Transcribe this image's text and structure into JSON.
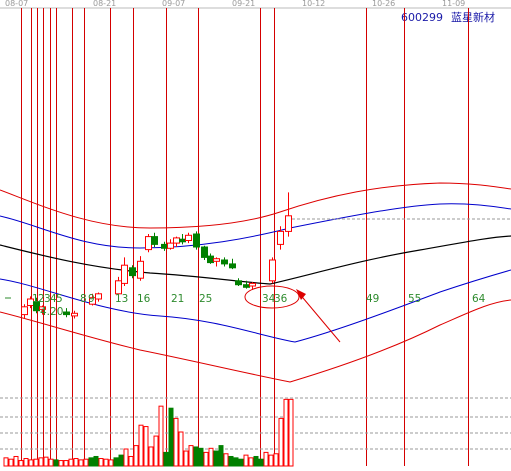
{
  "chart_data": {
    "type": "candlestick",
    "stock": {
      "code": "600299",
      "name": "蓝星新材"
    },
    "date_ticks": [
      "08-07",
      "08-21",
      "09-07",
      "09-21",
      "10-12",
      "10-26",
      "11-09"
    ],
    "price_label": "4.20",
    "time_zone_numbers": [
      {
        "label": "1"
      },
      {
        "label": "2"
      },
      {
        "label": "3"
      },
      {
        "label": "4"
      },
      {
        "label": "5"
      },
      {
        "label": "8"
      },
      {
        "label": "9"
      },
      {
        "label": "13"
      },
      {
        "label": "16"
      },
      {
        "label": "21"
      },
      {
        "label": "25"
      },
      {
        "label": "34"
      },
      {
        "label": "36"
      },
      {
        "label": "49"
      },
      {
        "label": "55"
      },
      {
        "label": "64"
      }
    ],
    "candles": [
      {
        "o": 3.98,
        "h": 4.06,
        "l": 3.95,
        "c": 4.04
      },
      {
        "o": 4.05,
        "h": 4.12,
        "l": 4.03,
        "c": 4.1
      },
      {
        "o": 4.08,
        "h": 4.11,
        "l": 3.99,
        "c": 4.01
      },
      {
        "o": 4.02,
        "h": 4.05,
        "l": 3.98,
        "c": 4.04
      },
      {
        "o": 4.0,
        "h": 4.03,
        "l": 3.96,
        "c": 3.98
      },
      {
        "o": 3.97,
        "h": 4.01,
        "l": 3.95,
        "c": 3.99
      },
      {
        "o": 4.06,
        "h": 4.14,
        "l": 4.05,
        "c": 4.11
      },
      {
        "o": 4.1,
        "h": 4.15,
        "l": 4.08,
        "c": 4.14
      },
      {
        "o": 4.14,
        "h": 4.27,
        "l": 4.12,
        "c": 4.24
      },
      {
        "o": 4.22,
        "h": 4.42,
        "l": 4.2,
        "c": 4.36
      },
      {
        "o": 4.34,
        "h": 4.36,
        "l": 4.26,
        "c": 4.28
      },
      {
        "o": 4.26,
        "h": 4.43,
        "l": 4.24,
        "c": 4.39
      },
      {
        "o": 4.48,
        "h": 4.6,
        "l": 4.46,
        "c": 4.58
      },
      {
        "o": 4.58,
        "h": 4.61,
        "l": 4.5,
        "c": 4.52
      },
      {
        "o": 4.52,
        "h": 4.54,
        "l": 4.47,
        "c": 4.49
      },
      {
        "o": 4.49,
        "h": 4.56,
        "l": 4.48,
        "c": 4.53
      },
      {
        "o": 4.53,
        "h": 4.58,
        "l": 4.5,
        "c": 4.57
      },
      {
        "o": 4.56,
        "h": 4.6,
        "l": 4.52,
        "c": 4.54
      },
      {
        "o": 4.55,
        "h": 4.61,
        "l": 4.53,
        "c": 4.59
      },
      {
        "o": 4.6,
        "h": 4.62,
        "l": 4.48,
        "c": 4.5
      },
      {
        "o": 4.5,
        "h": 4.51,
        "l": 4.4,
        "c": 4.42
      },
      {
        "o": 4.43,
        "h": 4.45,
        "l": 4.37,
        "c": 4.38
      },
      {
        "o": 4.39,
        "h": 4.42,
        "l": 4.35,
        "c": 4.41
      },
      {
        "o": 4.4,
        "h": 4.42,
        "l": 4.35,
        "c": 4.37
      },
      {
        "o": 4.37,
        "h": 4.41,
        "l": 4.33,
        "c": 4.34
      },
      {
        "o": 4.24,
        "h": 4.26,
        "l": 4.2,
        "c": 4.21
      },
      {
        "o": 4.21,
        "h": 4.24,
        "l": 4.18,
        "c": 4.19
      },
      {
        "o": 4.2,
        "h": 4.23,
        "l": 4.17,
        "c": 4.22
      },
      {
        "o": 4.24,
        "h": 4.42,
        "l": 4.22,
        "c": 4.4
      },
      {
        "o": 4.52,
        "h": 4.66,
        "l": 4.48,
        "c": 4.62
      },
      {
        "o": 4.62,
        "h": 4.92,
        "l": 4.58,
        "c": 4.74
      }
    ],
    "volume": [
      {
        "v": 12
      },
      {
        "v": 10
      },
      {
        "v": 14
      },
      {
        "v": 8
      },
      {
        "v": 11
      },
      {
        "v": 9
      },
      {
        "v": 10
      },
      {
        "v": 12
      },
      {
        "v": 13
      },
      {
        "v": 10
      },
      {
        "v": 9
      },
      {
        "v": 8
      },
      {
        "v": 8
      },
      {
        "v": 10
      },
      {
        "v": 11
      },
      {
        "v": 9
      },
      {
        "v": 10
      },
      {
        "v": 12
      },
      {
        "v": 14
      },
      {
        "v": 11
      },
      {
        "v": 10
      },
      {
        "v": 9
      },
      {
        "v": 12
      },
      {
        "v": 16
      },
      {
        "v": 25
      },
      {
        "v": 14
      },
      {
        "v": 30
      },
      {
        "v": 60
      },
      {
        "v": 58
      },
      {
        "v": 28
      },
      {
        "v": 44
      },
      {
        "v": 88
      },
      {
        "v": 20
      },
      {
        "v": 85
      },
      {
        "v": 70
      },
      {
        "v": 50
      },
      {
        "v": 22
      },
      {
        "v": 30
      },
      {
        "v": 28
      },
      {
        "v": 26
      },
      {
        "v": 20
      },
      {
        "v": 26
      },
      {
        "v": 22
      },
      {
        "v": 30
      },
      {
        "v": 18
      },
      {
        "v": 14
      },
      {
        "v": 12
      },
      {
        "v": 10
      },
      {
        "v": 16
      },
      {
        "v": 12
      },
      {
        "v": 14
      },
      {
        "v": 10
      },
      {
        "v": 20
      },
      {
        "v": 16
      },
      {
        "v": 18
      },
      {
        "v": 70
      },
      {
        "v": 98
      },
      {
        "v": 98
      }
    ],
    "colors": {
      "up": "#ff0000",
      "down": "#008000",
      "fib_line": "#d40000",
      "ma_mid": "#000000",
      "band_inner": "#0000cc",
      "band_outer": "#dd0000",
      "stock_text": "#1a1aa8",
      "zone_numbers": "#2e8b2e",
      "dashed": "#9a9a9a"
    }
  }
}
